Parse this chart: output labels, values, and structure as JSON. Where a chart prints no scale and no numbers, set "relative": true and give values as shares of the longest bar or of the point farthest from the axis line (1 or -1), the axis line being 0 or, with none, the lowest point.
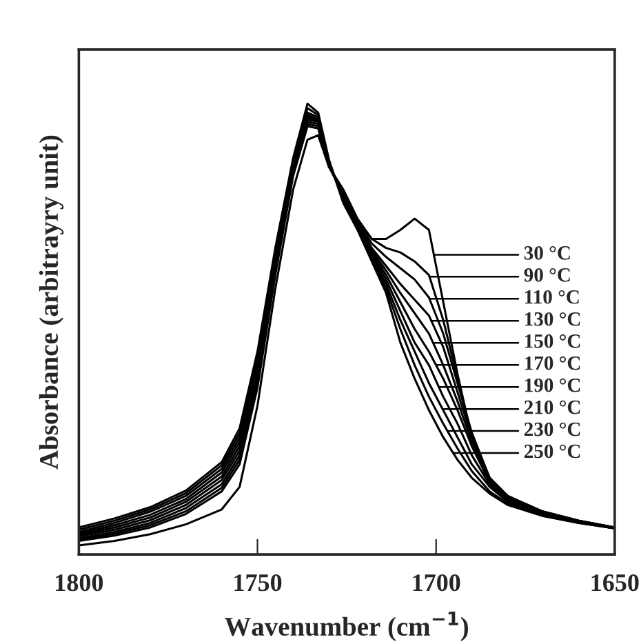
{
  "chart_data": {
    "type": "line",
    "relative": true,
    "xlabel": "Wavenumber (cm$^{−1}$)",
    "ylabel": "Absorbance (arbitrayry unit)",
    "x": [
      1800,
      1790,
      1780,
      1770,
      1760,
      1755,
      1750,
      1745,
      1740,
      1736,
      1733,
      1730,
      1726,
      1722,
      1718,
      1714,
      1710,
      1706,
      1702,
      1698,
      1694,
      1690,
      1685,
      1680,
      1670,
      1660,
      1650
    ],
    "xlim": [
      1800,
      1650
    ],
    "xticks": [
      1800,
      1750,
      1700,
      1650
    ],
    "grid": false,
    "legend": "right",
    "marker": "none",
    "line_style": "solid",
    "series": [
      {
        "name": "30 °C",
        "color": "#000000",
        "values": [
          0.02,
          0.03,
          0.045,
          0.067,
          0.1,
          0.15,
          0.33,
          0.59,
          0.81,
          0.92,
          0.93,
          0.86,
          0.81,
          0.745,
          0.7,
          0.7,
          0.72,
          0.745,
          0.72,
          0.56,
          0.4,
          0.26,
          0.15,
          0.12,
          0.095,
          0.075,
          0.06
        ]
      },
      {
        "name": "90 °C",
        "color": "#000000",
        "values": [
          0.03,
          0.042,
          0.06,
          0.09,
          0.14,
          0.2,
          0.37,
          0.62,
          0.84,
          0.95,
          0.945,
          0.86,
          0.8,
          0.74,
          0.7,
          0.68,
          0.67,
          0.65,
          0.62,
          0.52,
          0.39,
          0.26,
          0.16,
          0.125,
          0.095,
          0.075,
          0.06
        ]
      },
      {
        "name": "110 °C",
        "color": "#000000",
        "values": [
          0.033,
          0.046,
          0.065,
          0.096,
          0.148,
          0.21,
          0.38,
          0.63,
          0.845,
          0.955,
          0.95,
          0.862,
          0.8,
          0.738,
          0.69,
          0.66,
          0.635,
          0.61,
          0.57,
          0.49,
          0.38,
          0.27,
          0.17,
          0.13,
          0.095,
          0.075,
          0.06
        ]
      },
      {
        "name": "130 °C",
        "color": "#000000",
        "values": [
          0.036,
          0.05,
          0.07,
          0.103,
          0.156,
          0.22,
          0.39,
          0.64,
          0.85,
          0.96,
          0.955,
          0.864,
          0.795,
          0.735,
          0.68,
          0.64,
          0.6,
          0.565,
          0.53,
          0.46,
          0.36,
          0.26,
          0.17,
          0.13,
          0.093,
          0.074,
          0.06
        ]
      },
      {
        "name": "150 °C",
        "color": "#000000",
        "values": [
          0.04,
          0.055,
          0.076,
          0.11,
          0.165,
          0.23,
          0.4,
          0.65,
          0.855,
          0.965,
          0.96,
          0.866,
          0.795,
          0.733,
          0.675,
          0.63,
          0.58,
          0.535,
          0.49,
          0.42,
          0.34,
          0.25,
          0.165,
          0.128,
          0.092,
          0.073,
          0.059
        ]
      },
      {
        "name": "170 °C",
        "color": "#000000",
        "values": [
          0.043,
          0.06,
          0.082,
          0.117,
          0.173,
          0.24,
          0.41,
          0.655,
          0.86,
          0.97,
          0.962,
          0.868,
          0.79,
          0.73,
          0.67,
          0.62,
          0.56,
          0.5,
          0.45,
          0.39,
          0.32,
          0.24,
          0.16,
          0.125,
          0.09,
          0.072,
          0.059
        ]
      },
      {
        "name": "190 °C",
        "color": "#000000",
        "values": [
          0.046,
          0.065,
          0.088,
          0.123,
          0.182,
          0.25,
          0.42,
          0.66,
          0.865,
          0.975,
          0.965,
          0.87,
          0.79,
          0.728,
          0.665,
          0.61,
          0.54,
          0.47,
          0.42,
          0.35,
          0.29,
          0.22,
          0.155,
          0.12,
          0.089,
          0.072,
          0.058
        ]
      },
      {
        "name": "210 °C",
        "color": "#000000",
        "values": [
          0.05,
          0.07,
          0.095,
          0.13,
          0.19,
          0.26,
          0.43,
          0.67,
          0.87,
          0.98,
          0.97,
          0.872,
          0.785,
          0.725,
          0.66,
          0.6,
          0.52,
          0.45,
          0.38,
          0.32,
          0.26,
          0.2,
          0.15,
          0.117,
          0.088,
          0.071,
          0.058
        ]
      },
      {
        "name": "230 °C",
        "color": "#000000",
        "values": [
          0.055,
          0.075,
          0.1,
          0.136,
          0.198,
          0.27,
          0.44,
          0.675,
          0.875,
          0.99,
          0.975,
          0.874,
          0.785,
          0.722,
          0.655,
          0.59,
          0.5,
          0.42,
          0.35,
          0.29,
          0.235,
          0.185,
          0.14,
          0.113,
          0.086,
          0.07,
          0.058
        ]
      },
      {
        "name": "250 °C",
        "color": "#000000",
        "values": [
          0.06,
          0.08,
          0.105,
          0.142,
          0.205,
          0.28,
          0.45,
          0.68,
          0.88,
          1.0,
          0.98,
          0.876,
          0.78,
          0.72,
          0.65,
          0.58,
          0.47,
          0.39,
          0.32,
          0.26,
          0.21,
          0.17,
          0.135,
          0.11,
          0.085,
          0.07,
          0.058
        ]
      }
    ]
  }
}
